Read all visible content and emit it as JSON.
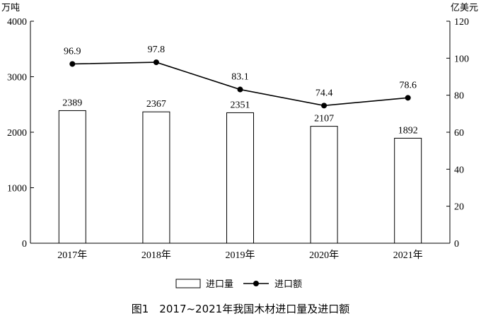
{
  "chart_data": {
    "type": "bar+line",
    "caption": "图1　2017~2021年我国木材进口量及进口额",
    "left_unit": "万吨",
    "right_unit": "亿美元",
    "categories": [
      "2017年",
      "2018年",
      "2019年",
      "2020年",
      "2021年"
    ],
    "left_axis": {
      "min": 0,
      "max": 4000,
      "ticks": [
        0,
        1000,
        2000,
        3000,
        4000
      ]
    },
    "right_axis": {
      "min": 0,
      "max": 120,
      "ticks": [
        0,
        20,
        40,
        60,
        80,
        100,
        120
      ]
    },
    "series": [
      {
        "name": "进口量",
        "kind": "bar",
        "axis": "left",
        "values": [
          2389,
          2367,
          2351,
          2107,
          1892
        ]
      },
      {
        "name": "进口额",
        "kind": "line",
        "axis": "right",
        "values": [
          96.9,
          97.8,
          83.1,
          74.4,
          78.6
        ]
      }
    ],
    "bar_labels": [
      "2389",
      "2367",
      "2351",
      "2107",
      "1892"
    ],
    "line_labels": [
      "96.9",
      "97.8",
      "83.1",
      "74.4",
      "78.6"
    ],
    "legend_position": "bottom",
    "colors": {
      "bar_fill": "#ffffff",
      "stroke": "#000000",
      "line": "#000000"
    }
  }
}
